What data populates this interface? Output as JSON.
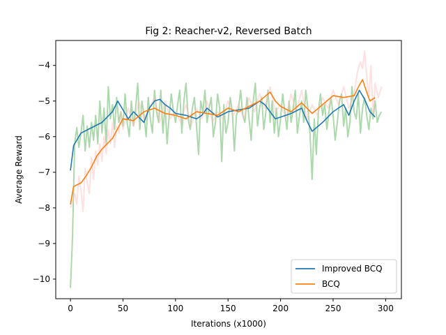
{
  "chart_data": {
    "type": "line",
    "title": "Fig 2: Reacher-v2, Reversed Batch",
    "xlabel": "Iterations (x1000)",
    "ylabel": "Average Reward",
    "xlim": [
      -14,
      315
    ],
    "ylim": [
      -10.55,
      -3.3
    ],
    "xticks": [
      0,
      50,
      100,
      150,
      200,
      250,
      300
    ],
    "yticks": [
      -10,
      -9,
      -8,
      -7,
      -6,
      -5,
      -4
    ],
    "legend_position": "lower-right",
    "grid": false,
    "series": [
      {
        "name": "Improved BCQ",
        "role": "smoothed",
        "color": "#1f77b4",
        "x": [
          0,
          3,
          10,
          20,
          30,
          40,
          45,
          50,
          55,
          60,
          65,
          70,
          75,
          80,
          85,
          90,
          95,
          100,
          110,
          120,
          125,
          130,
          140,
          150,
          160,
          170,
          180,
          185,
          190,
          195,
          200,
          210,
          220,
          225,
          230,
          240,
          250,
          255,
          260,
          265,
          270,
          275,
          280,
          285,
          290
        ],
        "y": [
          -6.95,
          -6.25,
          -5.9,
          -5.75,
          -5.6,
          -5.3,
          -5.0,
          -5.25,
          -5.5,
          -5.3,
          -5.45,
          -5.6,
          -5.2,
          -5.0,
          -4.95,
          -5.1,
          -5.2,
          -5.35,
          -5.4,
          -5.5,
          -5.4,
          -5.2,
          -5.45,
          -5.3,
          -5.25,
          -5.2,
          -5.0,
          -5.1,
          -5.3,
          -5.5,
          -5.45,
          -5.35,
          -5.2,
          -5.55,
          -5.85,
          -5.6,
          -5.3,
          -5.2,
          -5.1,
          -5.4,
          -5.0,
          -4.7,
          -4.95,
          -5.3,
          -5.45
        ]
      },
      {
        "name": "BCQ",
        "role": "smoothed",
        "color": "#ff7f0e",
        "x": [
          0,
          3,
          10,
          15,
          20,
          25,
          30,
          40,
          50,
          60,
          70,
          80,
          90,
          100,
          110,
          120,
          130,
          140,
          150,
          160,
          170,
          180,
          190,
          195,
          200,
          210,
          220,
          230,
          240,
          250,
          260,
          270,
          275,
          278,
          282,
          285,
          290
        ],
        "y": [
          -7.9,
          -7.4,
          -7.3,
          -7.1,
          -6.85,
          -6.55,
          -6.35,
          -6.05,
          -5.5,
          -5.55,
          -5.3,
          -5.2,
          -5.35,
          -5.4,
          -5.5,
          -5.3,
          -5.35,
          -5.4,
          -5.2,
          -5.3,
          -5.15,
          -5.0,
          -4.75,
          -5.0,
          -5.15,
          -5.3,
          -5.05,
          -5.35,
          -5.1,
          -4.85,
          -4.9,
          -4.85,
          -4.55,
          -4.4,
          -4.75,
          -5.0,
          -4.9
        ]
      },
      {
        "name": "",
        "role": "raw",
        "color": "#2ca02c",
        "opacity": 0.4,
        "x": [
          0,
          2,
          4,
          6,
          8,
          10,
          12,
          14,
          16,
          18,
          20,
          22,
          24,
          26,
          28,
          30,
          32,
          34,
          36,
          38,
          40,
          42,
          44,
          46,
          48,
          50,
          52,
          54,
          56,
          58,
          60,
          62,
          64,
          66,
          68,
          70,
          72,
          74,
          76,
          78,
          80,
          82,
          84,
          86,
          88,
          90,
          92,
          94,
          96,
          98,
          100,
          102,
          104,
          106,
          108,
          110,
          112,
          114,
          116,
          118,
          120,
          122,
          124,
          126,
          128,
          130,
          132,
          134,
          136,
          138,
          140,
          142,
          144,
          146,
          148,
          150,
          152,
          154,
          156,
          158,
          160,
          162,
          164,
          166,
          168,
          170,
          172,
          174,
          176,
          178,
          180,
          182,
          184,
          186,
          188,
          190,
          192,
          194,
          196,
          198,
          200,
          202,
          204,
          206,
          208,
          210,
          212,
          214,
          216,
          218,
          220,
          222,
          224,
          226,
          228,
          230,
          232,
          234,
          236,
          238,
          240,
          242,
          244,
          246,
          248,
          250,
          252,
          254,
          256,
          258,
          260,
          262,
          264,
          266,
          268,
          270,
          272,
          274,
          276,
          278,
          280,
          282,
          284,
          286,
          288,
          290,
          292,
          294,
          296
        ],
        "y": [
          -10.25,
          -8.8,
          -6.2,
          -5.75,
          -6.3,
          -5.9,
          -5.4,
          -6.4,
          -5.7,
          -6.3,
          -5.6,
          -6.1,
          -5.4,
          -6.2,
          -5.0,
          -5.9,
          -5.2,
          -6.2,
          -4.6,
          -5.5,
          -5.1,
          -5.8,
          -4.9,
          -5.6,
          -5.3,
          -5.7,
          -4.8,
          -5.6,
          -6.0,
          -5.0,
          -5.7,
          -5.2,
          -4.5,
          -5.8,
          -5.0,
          -5.4,
          -6.0,
          -4.9,
          -5.5,
          -5.9,
          -4.7,
          -5.3,
          -5.6,
          -4.7,
          -5.9,
          -5.1,
          -6.2,
          -5.4,
          -4.8,
          -5.3,
          -5.6,
          -5.1,
          -4.7,
          -5.9,
          -5.0,
          -4.5,
          -5.5,
          -5.8,
          -5.2,
          -4.9,
          -5.7,
          -6.5,
          -5.0,
          -5.3,
          -4.7,
          -5.6,
          -5.2,
          -4.9,
          -6.0,
          -5.6,
          -4.8,
          -5.2,
          -6.7,
          -5.1,
          -5.9,
          -5.6,
          -4.9,
          -5.3,
          -6.4,
          -5.4,
          -5.2,
          -4.7,
          -5.4,
          -5.6,
          -4.9,
          -5.5,
          -6.1,
          -5.0,
          -4.5,
          -5.7,
          -5.2,
          -4.9,
          -5.8,
          -5.3,
          -4.7,
          -5.6,
          -5.0,
          -5.9,
          -5.2,
          -6.0,
          -5.5,
          -4.8,
          -5.3,
          -5.8,
          -5.0,
          -5.6,
          -5.2,
          -4.7,
          -5.9,
          -5.4,
          -5.0,
          -5.6,
          -4.7,
          -5.2,
          -5.9,
          -7.2,
          -5.5,
          -6.5,
          -5.3,
          -4.8,
          -5.4,
          -5.1,
          -5.8,
          -5.3,
          -4.9,
          -5.4,
          -6.1,
          -5.6,
          -5.0,
          -4.8,
          -5.7,
          -5.2,
          -6.0,
          -5.6,
          -4.6,
          -5.3,
          -5.5,
          -4.8,
          -5.9,
          -5.2,
          -4.9,
          -5.4,
          -5.8,
          -5.2,
          -5.5,
          -5.0,
          -5.6,
          -5.4,
          -5.3
        ]
      },
      {
        "name": "",
        "role": "raw",
        "color": "#ffbbbb",
        "opacity": 0.45,
        "x": [
          0,
          2,
          4,
          6,
          8,
          10,
          12,
          14,
          16,
          18,
          20,
          22,
          24,
          26,
          28,
          30,
          32,
          34,
          36,
          38,
          40,
          42,
          44,
          46,
          48,
          50,
          55,
          60,
          65,
          70,
          75,
          80,
          85,
          90,
          95,
          100,
          105,
          110,
          115,
          120,
          125,
          130,
          135,
          140,
          145,
          150,
          155,
          160,
          165,
          170,
          175,
          180,
          185,
          190,
          195,
          200,
          205,
          210,
          215,
          220,
          225,
          230,
          235,
          240,
          245,
          250,
          255,
          260,
          265,
          270,
          273,
          276,
          278,
          280,
          282,
          284,
          286,
          288,
          290,
          293,
          296
        ],
        "y": [
          -8.0,
          -7.8,
          -7.6,
          -7.9,
          -7.1,
          -7.5,
          -8.1,
          -6.9,
          -7.3,
          -7.6,
          -6.6,
          -7.2,
          -6.4,
          -6.8,
          -6.2,
          -6.7,
          -6.0,
          -6.5,
          -5.8,
          -6.2,
          -5.6,
          -6.3,
          -5.7,
          -5.9,
          -5.3,
          -5.8,
          -5.2,
          -5.7,
          -5.0,
          -5.5,
          -5.2,
          -4.9,
          -5.6,
          -5.0,
          -5.5,
          -5.3,
          -5.6,
          -5.1,
          -5.7,
          -5.2,
          -5.5,
          -5.0,
          -5.6,
          -5.3,
          -5.5,
          -5.0,
          -5.4,
          -5.1,
          -5.5,
          -4.9,
          -5.3,
          -4.8,
          -5.2,
          -4.6,
          -5.3,
          -5.1,
          -5.5,
          -4.8,
          -5.3,
          -4.7,
          -5.5,
          -5.1,
          -5.4,
          -4.9,
          -5.2,
          -4.7,
          -5.1,
          -4.6,
          -5.2,
          -4.8,
          -4.2,
          -3.9,
          -4.1,
          -3.6,
          -4.3,
          -4.9,
          -4.0,
          -5.4,
          -4.5,
          -4.9,
          -4.6
        ]
      }
    ]
  }
}
